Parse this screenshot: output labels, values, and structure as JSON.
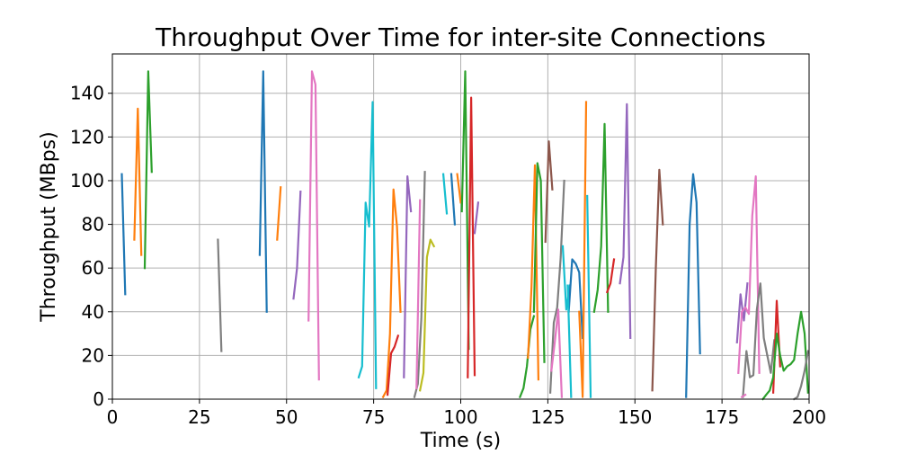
{
  "chart_data": {
    "type": "line",
    "title": "Throughput Over Time for inter-site Connections",
    "xlabel": "Time (s)",
    "ylabel": "Throughput (MBps)",
    "xlim": [
      0,
      200
    ],
    "ylim": [
      0,
      158
    ],
    "xticks": [
      0,
      25,
      50,
      75,
      100,
      125,
      150,
      175,
      200
    ],
    "yticks": [
      0,
      20,
      40,
      60,
      80,
      100,
      120,
      140
    ],
    "xtick_labels": [
      "0",
      "25",
      "50",
      "75",
      "100",
      "125",
      "150",
      "175",
      "200"
    ],
    "ytick_labels": [
      "0",
      "20",
      "40",
      "60",
      "80",
      "100",
      "120",
      "140"
    ],
    "grid": true,
    "legend": false,
    "series": [
      {
        "color": "#1f77b4",
        "x": [
          2.7,
          3.7
        ],
        "y": [
          103,
          48
        ]
      },
      {
        "color": "#ff7f0e",
        "x": [
          6.3,
          7.3,
          8.3
        ],
        "y": [
          73,
          133,
          66
        ]
      },
      {
        "color": "#2ca02c",
        "x": [
          9.3,
          10.3,
          11.3
        ],
        "y": [
          60,
          150,
          104
        ]
      },
      {
        "color": "#7f7f7f",
        "x": [
          30.3,
          31.3
        ],
        "y": [
          73,
          22
        ]
      },
      {
        "color": "#1f77b4",
        "x": [
          42.3,
          43.3,
          44.3
        ],
        "y": [
          66,
          150,
          40
        ]
      },
      {
        "color": "#ff7f0e",
        "x": [
          47.3,
          48.3
        ],
        "y": [
          73,
          97
        ]
      },
      {
        "color": "#9467bd",
        "x": [
          52.0,
          53.0,
          54.0
        ],
        "y": [
          46,
          60,
          95
        ]
      },
      {
        "color": "#e377c2",
        "x": [
          56.3,
          57.3,
          58.3,
          59.3
        ],
        "y": [
          36,
          150,
          144,
          9
        ]
      },
      {
        "color": "#17becf",
        "x": [
          70.7,
          71.7,
          72.7,
          73.7,
          74.7,
          75.7
        ],
        "y": [
          10,
          15,
          90,
          79,
          136,
          5
        ]
      },
      {
        "color": "#ff7f0e",
        "x": [
          77.7,
          78.7,
          79.7,
          80.7,
          81.7,
          82.7
        ],
        "y": [
          1,
          4,
          30,
          96,
          79,
          40
        ]
      },
      {
        "color": "#d62728",
        "x": [
          79.0,
          80.0,
          81.0,
          82.0
        ],
        "y": [
          2,
          21,
          24,
          29
        ]
      },
      {
        "color": "#9467bd",
        "x": [
          83.7,
          84.7,
          85.7
        ],
        "y": [
          10,
          102,
          86
        ]
      },
      {
        "color": "#7f7f7f",
        "x": [
          86.7,
          87.7,
          88.7,
          89.7
        ],
        "y": [
          1,
          7,
          37,
          104
        ]
      },
      {
        "color": "#e377c2",
        "x": [
          87.3,
          88.3
        ],
        "y": [
          5,
          91
        ]
      },
      {
        "color": "#bcbd22",
        "x": [
          88.3,
          89.3,
          90.3,
          91.3,
          92.3
        ],
        "y": [
          4,
          12,
          65,
          73,
          70
        ]
      },
      {
        "color": "#17becf",
        "x": [
          95.0,
          96.0
        ],
        "y": [
          103,
          85
        ]
      },
      {
        "color": "#1f77b4",
        "x": [
          97.3,
          98.3
        ],
        "y": [
          103,
          80
        ]
      },
      {
        "color": "#ff7f0e",
        "x": [
          99.0,
          100.0
        ],
        "y": [
          103,
          90
        ]
      },
      {
        "color": "#2ca02c",
        "x": [
          100.3,
          101.3,
          102.3
        ],
        "y": [
          86,
          150,
          23
        ]
      },
      {
        "color": "#d62728",
        "x": [
          102.0,
          103.0,
          104.0
        ],
        "y": [
          10,
          138,
          11
        ]
      },
      {
        "color": "#9467bd",
        "x": [
          104.0,
          105.0
        ],
        "y": [
          76,
          90
        ]
      },
      {
        "color": "#2ca02c",
        "x": [
          117.0,
          118.0,
          119.0,
          120.0,
          121.0
        ],
        "y": [
          1,
          5,
          15,
          32,
          38
        ]
      },
      {
        "color": "#ff7f0e",
        "x": [
          119.3,
          120.3,
          121.3,
          122.3
        ],
        "y": [
          19,
          51,
          107,
          9
        ]
      },
      {
        "color": "#2ca02c",
        "x": [
          121.0,
          122.0,
          123.0,
          124.0
        ],
        "y": [
          40,
          108,
          100,
          17
        ]
      },
      {
        "color": "#8c564b",
        "x": [
          124.3,
          125.3,
          126.3
        ],
        "y": [
          72,
          118,
          96
        ]
      },
      {
        "color": "#7f7f7f",
        "x": [
          125.7,
          126.7,
          127.7,
          128.7,
          129.7
        ],
        "y": [
          3,
          35,
          42,
          65,
          100
        ]
      },
      {
        "color": "#e377c2",
        "x": [
          126.0,
          127.0,
          128.0,
          129.0
        ],
        "y": [
          13,
          26,
          41,
          1
        ]
      },
      {
        "color": "#17becf",
        "x": [
          129.3,
          130.3,
          131.3
        ],
        "y": [
          70,
          41,
          52
        ]
      },
      {
        "color": "#1f77b4",
        "x": [
          131.0,
          132.0,
          133.0,
          134.0,
          135.0
        ],
        "y": [
          40,
          64,
          62,
          58,
          28
        ]
      },
      {
        "color": "#17becf",
        "x": [
          130.7,
          131.7
        ],
        "y": [
          52,
          1
        ]
      },
      {
        "color": "#ff7f0e",
        "x": [
          134.0,
          135.0,
          136.0
        ],
        "y": [
          40,
          1,
          136
        ]
      },
      {
        "color": "#17becf",
        "x": [
          136.3,
          137.3
        ],
        "y": [
          93,
          1
        ]
      },
      {
        "color": "#2ca02c",
        "x": [
          138.3,
          139.3,
          140.3,
          141.3,
          142.3
        ],
        "y": [
          40,
          50,
          70,
          126,
          40
        ]
      },
      {
        "color": "#d62728",
        "x": [
          142.0,
          143.0,
          144.0
        ],
        "y": [
          49,
          53,
          64
        ]
      },
      {
        "color": "#9467bd",
        "x": [
          145.7,
          146.7,
          147.7,
          148.7
        ],
        "y": [
          53,
          65,
          135,
          28
        ]
      },
      {
        "color": "#8c564b",
        "x": [
          155.0,
          156.0,
          157.0,
          158.0
        ],
        "y": [
          4,
          60,
          105,
          80
        ]
      },
      {
        "color": "#1f77b4",
        "x": [
          164.7,
          165.7,
          166.7,
          167.7,
          168.7
        ],
        "y": [
          1,
          80,
          103,
          90,
          21
        ]
      },
      {
        "color": "#9467bd",
        "x": [
          179.3,
          180.3,
          181.3,
          182.3
        ],
        "y": [
          26,
          48,
          36,
          53
        ]
      },
      {
        "color": "#e377c2",
        "x": [
          179.7,
          180.7,
          181.7,
          182.7,
          183.7,
          184.7,
          185.7
        ],
        "y": [
          12,
          40,
          42,
          39,
          84,
          102,
          12
        ]
      },
      {
        "color": "#7f7f7f",
        "x": [
          181.0,
          182.0,
          183.0,
          184.0,
          185.0,
          186.0,
          187.0,
          188.0
        ],
        "y": [
          1,
          22,
          10,
          11,
          41,
          53,
          28,
          20
        ]
      },
      {
        "color": "#e377c2",
        "x": [
          180.7,
          181.7
        ],
        "y": [
          1,
          2
        ]
      },
      {
        "color": "#7f7f7f",
        "x": [
          188.0,
          189.0,
          190.0
        ],
        "y": [
          20,
          12,
          27
        ]
      },
      {
        "color": "#d62728",
        "x": [
          189.7,
          190.7,
          191.7
        ],
        "y": [
          3,
          45,
          15
        ]
      },
      {
        "color": "#2ca02c",
        "x": [
          186.7,
          187.7,
          188.7,
          189.7,
          190.7,
          191.7,
          192.7,
          193.7,
          194.7,
          195.7,
          196.7,
          197.7,
          198.7,
          199.7
        ],
        "y": [
          0,
          2,
          4,
          10,
          30,
          20,
          13,
          15,
          16,
          18,
          30,
          40,
          30,
          3
        ]
      },
      {
        "color": "#7f7f7f",
        "x": [
          195.7,
          196.7,
          197.7,
          198.7,
          199.7
        ],
        "y": [
          0,
          1,
          6,
          13,
          22
        ]
      }
    ]
  }
}
